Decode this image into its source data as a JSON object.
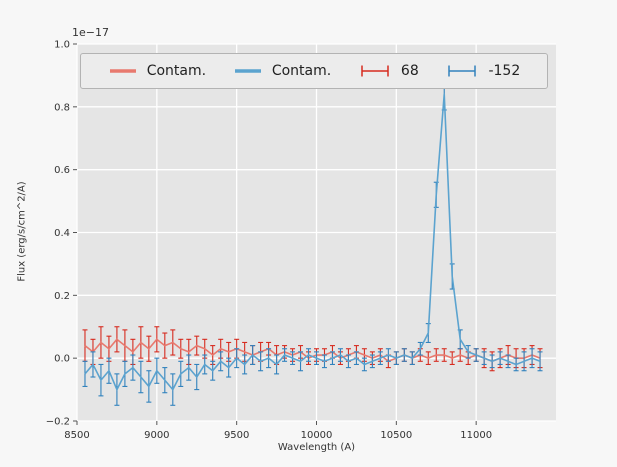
{
  "figure": {
    "offset_text": "1e−17",
    "xlabel": "Wavelength (A)",
    "ylabel": "Flux (erg/s/cm^2/A)"
  },
  "legend": {
    "items": [
      {
        "label": "Contam.",
        "type": "line",
        "color_key": "red_line"
      },
      {
        "label": "Contam.",
        "type": "line",
        "color_key": "blue_line"
      },
      {
        "label": "68",
        "type": "errorbar",
        "color_key": "red_error"
      },
      {
        "label": "-152",
        "type": "errorbar",
        "color_key": "blue_error"
      }
    ]
  },
  "chart_data": {
    "type": "line",
    "title": "",
    "xlabel": "Wavelength (A)",
    "ylabel": "Flux (erg/s/cm^2/A)",
    "y_offset_factor": "1e-17",
    "xlim": [
      8500,
      11500
    ],
    "ylim": [
      -0.2,
      1.0
    ],
    "xticks": [
      8500,
      9000,
      9500,
      10000,
      10500,
      11000
    ],
    "xticklabels": [
      "8500",
      "9000",
      "9500",
      "10000",
      "10500",
      "11000"
    ],
    "yticks": [
      -0.2,
      0.0,
      0.2,
      0.4,
      0.6,
      0.8,
      1.0
    ],
    "yticklabels": [
      "−0.2",
      "0.0",
      "0.2",
      "0.4",
      "0.6",
      "0.8",
      "1.0"
    ],
    "grid": true,
    "legend_position": "upper center inside axes, horizontal, 4 entries",
    "annotations": [
      "strong emission-line peak in blue series near 10800 A reaching ~0.84e-17"
    ],
    "colors": {
      "red_line": "#e8796e",
      "red_error": "#d62b1f",
      "blue_line": "#5ba3cf",
      "blue_error": "#3182bd",
      "axes_bg": "#e5e5e5",
      "figure_bg": "#f7f7f7",
      "grid": "#ffffff",
      "tick": "#555555",
      "text": "#333333",
      "legend_bg": "#ececec",
      "legend_border": "#b3b3b3"
    },
    "x": [
      8550,
      8600,
      8650,
      8700,
      8750,
      8800,
      8850,
      8900,
      8950,
      9000,
      9050,
      9100,
      9150,
      9200,
      9250,
      9300,
      9350,
      9400,
      9450,
      9500,
      9550,
      9600,
      9650,
      9700,
      9750,
      9800,
      9850,
      9900,
      9950,
      10000,
      10050,
      10100,
      10150,
      10200,
      10250,
      10300,
      10350,
      10400,
      10450,
      10500,
      10550,
      10600,
      10650,
      10700,
      10750,
      10800,
      10850,
      10900,
      10950,
      11000,
      11050,
      11100,
      11150,
      11200,
      11250,
      11300,
      11350,
      11400
    ],
    "series": [
      {
        "name": "Contam.",
        "errorbar_label": "68",
        "color": "red",
        "values": [
          0.04,
          0.02,
          0.05,
          0.03,
          0.06,
          0.04,
          0.02,
          0.05,
          0.03,
          0.06,
          0.04,
          0.05,
          0.03,
          0.02,
          0.04,
          0.03,
          0.01,
          0.03,
          0.02,
          0.03,
          0.02,
          0.01,
          0.02,
          0.03,
          0.01,
          0.02,
          0.01,
          0.02,
          0.0,
          0.01,
          0.01,
          0.02,
          0.0,
          0.01,
          0.02,
          0.01,
          0.0,
          0.01,
          -0.01,
          0.0,
          0.01,
          0.0,
          0.01,
          0.0,
          0.01,
          0.01,
          0.0,
          0.01,
          0.0,
          0.01,
          0.0,
          -0.01,
          0.0,
          0.01,
          0.0,
          0.0,
          0.01,
          0.0
        ],
        "errors": [
          0.05,
          0.04,
          0.05,
          0.04,
          0.04,
          0.05,
          0.04,
          0.05,
          0.04,
          0.04,
          0.04,
          0.04,
          0.03,
          0.04,
          0.03,
          0.03,
          0.03,
          0.03,
          0.03,
          0.03,
          0.03,
          0.03,
          0.03,
          0.02,
          0.03,
          0.02,
          0.02,
          0.02,
          0.02,
          0.02,
          0.02,
          0.02,
          0.02,
          0.02,
          0.02,
          0.02,
          0.02,
          0.02,
          0.02,
          0.02,
          0.02,
          0.02,
          0.02,
          0.02,
          0.02,
          0.02,
          0.02,
          0.02,
          0.02,
          0.02,
          0.03,
          0.03,
          0.03,
          0.03,
          0.03,
          0.03,
          0.03,
          0.03
        ]
      },
      {
        "name": "Contam.",
        "errorbar_label": "-152",
        "color": "blue",
        "values": [
          -0.05,
          -0.02,
          -0.07,
          -0.04,
          -0.1,
          -0.05,
          -0.03,
          -0.06,
          -0.09,
          -0.04,
          -0.07,
          -0.1,
          -0.05,
          -0.03,
          -0.06,
          -0.02,
          -0.04,
          -0.01,
          -0.03,
          0.0,
          -0.02,
          0.01,
          -0.01,
          0.0,
          -0.02,
          0.01,
          0.0,
          -0.01,
          0.01,
          0.0,
          -0.01,
          0.0,
          0.01,
          -0.01,
          0.0,
          -0.02,
          -0.01,
          0.0,
          0.01,
          0.0,
          0.01,
          0.0,
          0.03,
          0.08,
          0.52,
          0.84,
          0.26,
          0.06,
          0.02,
          0.01,
          0.0,
          -0.01,
          0.0,
          -0.01,
          -0.02,
          -0.01,
          0.0,
          -0.01
        ],
        "errors": [
          0.04,
          0.04,
          0.05,
          0.04,
          0.05,
          0.04,
          0.04,
          0.05,
          0.05,
          0.04,
          0.04,
          0.05,
          0.04,
          0.04,
          0.04,
          0.03,
          0.03,
          0.03,
          0.03,
          0.03,
          0.03,
          0.03,
          0.03,
          0.03,
          0.03,
          0.02,
          0.02,
          0.03,
          0.02,
          0.02,
          0.02,
          0.02,
          0.02,
          0.02,
          0.02,
          0.02,
          0.02,
          0.02,
          0.02,
          0.02,
          0.02,
          0.02,
          0.02,
          0.03,
          0.04,
          0.05,
          0.04,
          0.03,
          0.02,
          0.02,
          0.02,
          0.02,
          0.02,
          0.02,
          0.02,
          0.03,
          0.03,
          0.03
        ]
      }
    ]
  }
}
